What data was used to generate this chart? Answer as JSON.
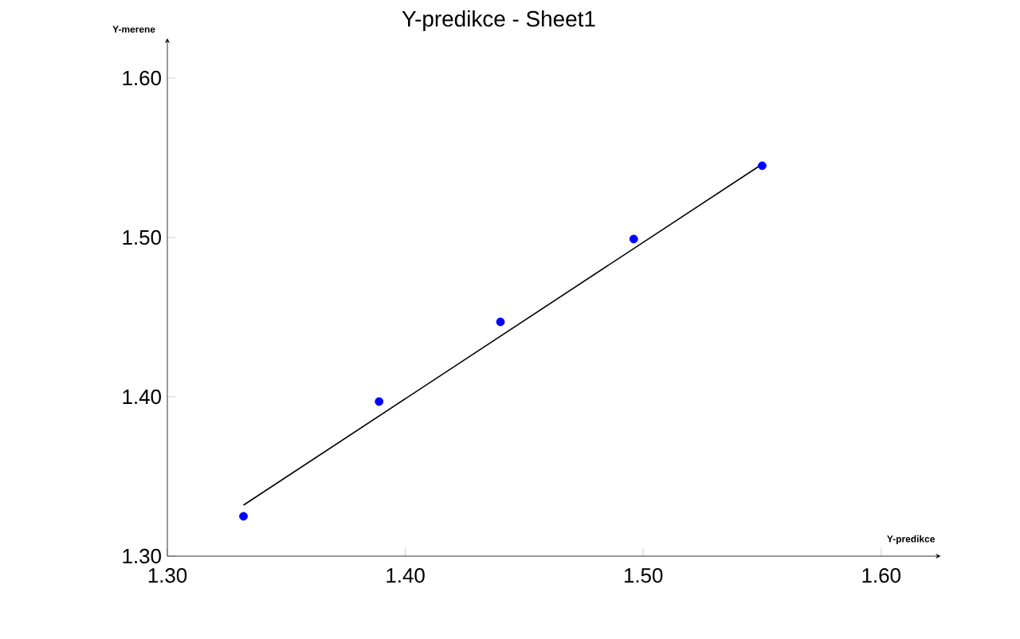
{
  "chart_data": {
    "type": "scatter",
    "title": "Y-predikce - Sheet1",
    "xlabel": "Y-predikce",
    "ylabel": "Y-merene",
    "xlim": [
      1.3,
      1.625
    ],
    "ylim": [
      1.3,
      1.625
    ],
    "xticks": [
      {
        "value": 1.3,
        "label": "1.30"
      },
      {
        "value": 1.4,
        "label": "1.40"
      },
      {
        "value": 1.5,
        "label": "1.50"
      },
      {
        "value": 1.6,
        "label": "1.60"
      }
    ],
    "yticks": [
      {
        "value": 1.3,
        "label": "1.30"
      },
      {
        "value": 1.4,
        "label": "1.40"
      },
      {
        "value": 1.5,
        "label": "1.50"
      },
      {
        "value": 1.6,
        "label": "1.60"
      }
    ],
    "series": [
      {
        "color": "#0000ff",
        "marker": "circle",
        "x": [
          1.332,
          1.389,
          1.44,
          1.496,
          1.55
        ],
        "values": [
          1.325,
          1.397,
          1.447,
          1.499,
          1.545
        ]
      },
      {
        "type": "line",
        "color": "#000000",
        "marker": "none",
        "line_style": "solid",
        "x": [
          1.332,
          1.55
        ],
        "values": [
          1.332,
          1.546
        ]
      }
    ]
  }
}
